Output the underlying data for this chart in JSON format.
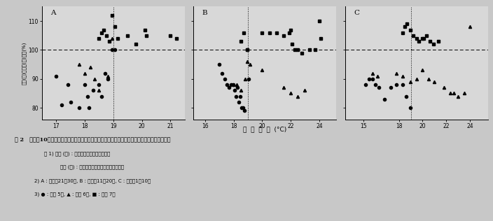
{
  "panels": [
    {
      "label": "A",
      "xlim": [
        16.5,
        21.5
      ],
      "xticks": [
        17,
        18,
        19,
        20,
        21
      ],
      "xtick_labels": [
        "17",
        "18",
        "19",
        "20",
        "21"
      ],
      "ylim": [
        76,
        115
      ],
      "yticks": [
        80,
        90,
        100,
        110
      ],
      "ytick_labels": [
        "80",
        "90",
        "100",
        "110"
      ],
      "vline_x": 19.0,
      "circles": [
        [
          17.0,
          91
        ],
        [
          17.2,
          81
        ],
        [
          17.4,
          88
        ],
        [
          17.5,
          82
        ],
        [
          17.8,
          80
        ],
        [
          18.0,
          88
        ],
        [
          18.1,
          84
        ],
        [
          18.15,
          80
        ],
        [
          18.3,
          86
        ],
        [
          18.5,
          88
        ],
        [
          18.6,
          84
        ],
        [
          18.7,
          92
        ],
        [
          18.8,
          90
        ],
        [
          18.95,
          100
        ],
        [
          19.05,
          100
        ]
      ],
      "triangles": [
        [
          17.8,
          95
        ],
        [
          18.0,
          92
        ],
        [
          18.2,
          94
        ],
        [
          18.35,
          90
        ],
        [
          18.5,
          86
        ],
        [
          18.8,
          91
        ],
        [
          18.95,
          104
        ]
      ],
      "squares": [
        [
          18.5,
          104
        ],
        [
          18.6,
          106
        ],
        [
          18.65,
          107
        ],
        [
          18.75,
          105
        ],
        [
          18.85,
          103
        ],
        [
          18.95,
          112
        ],
        [
          19.05,
          108
        ],
        [
          19.15,
          104
        ],
        [
          19.5,
          105
        ],
        [
          19.8,
          102
        ],
        [
          20.1,
          107
        ],
        [
          20.15,
          105
        ],
        [
          21.0,
          105
        ],
        [
          21.2,
          104
        ]
      ]
    },
    {
      "label": "B",
      "xlim": [
        15.2,
        25.2
      ],
      "xticks": [
        16,
        18,
        20,
        22,
        24
      ],
      "xtick_labels": [
        "16",
        "18",
        "20",
        "22",
        "24"
      ],
      "ylim": [
        76,
        115
      ],
      "yticks": [
        80,
        90,
        100,
        110
      ],
      "ytick_labels": [
        "80",
        "90",
        "100",
        "110"
      ],
      "vline_x": 19.0,
      "circles": [
        [
          17.0,
          95
        ],
        [
          17.2,
          92
        ],
        [
          17.4,
          90
        ],
        [
          17.55,
          88
        ],
        [
          17.7,
          87
        ],
        [
          17.85,
          88
        ],
        [
          17.95,
          88
        ],
        [
          18.05,
          86
        ],
        [
          18.15,
          84
        ],
        [
          18.25,
          87
        ],
        [
          18.35,
          82
        ],
        [
          18.45,
          84
        ],
        [
          18.55,
          80
        ],
        [
          18.65,
          80
        ],
        [
          18.75,
          79
        ],
        [
          18.95,
          100
        ],
        [
          19.05,
          90
        ]
      ],
      "triangles": [
        [
          18.0,
          88
        ],
        [
          18.2,
          88
        ],
        [
          18.5,
          86
        ],
        [
          18.8,
          90
        ],
        [
          18.95,
          96
        ],
        [
          19.15,
          95
        ],
        [
          20.0,
          93
        ],
        [
          21.5,
          87
        ],
        [
          22.0,
          85
        ],
        [
          22.5,
          84
        ],
        [
          23.0,
          86
        ]
      ],
      "squares": [
        [
          18.5,
          103
        ],
        [
          18.7,
          106
        ],
        [
          18.95,
          100
        ],
        [
          20.0,
          106
        ],
        [
          20.5,
          106
        ],
        [
          21.0,
          106
        ],
        [
          21.5,
          105
        ],
        [
          21.9,
          106
        ],
        [
          22.0,
          107
        ],
        [
          22.1,
          102
        ],
        [
          22.3,
          100
        ],
        [
          22.5,
          100
        ],
        [
          22.8,
          99
        ],
        [
          23.3,
          100
        ],
        [
          23.7,
          100
        ],
        [
          24.0,
          110
        ],
        [
          24.1,
          104
        ]
      ]
    },
    {
      "label": "C",
      "xlim": [
        13.5,
        25.5
      ],
      "xticks": [
        15,
        18,
        20,
        22,
        24
      ],
      "xtick_labels": [
        "15",
        "18",
        "20",
        "22",
        "24"
      ],
      "ylim": [
        76,
        115
      ],
      "yticks": [
        80,
        90,
        100,
        110
      ],
      "ytick_labels": [
        "80",
        "90",
        "100",
        "110"
      ],
      "vline_x": 19.0,
      "circles": [
        [
          15.2,
          88
        ],
        [
          15.5,
          90
        ],
        [
          15.8,
          90
        ],
        [
          16.0,
          88
        ],
        [
          16.3,
          87
        ],
        [
          16.8,
          83
        ],
        [
          17.3,
          87
        ],
        [
          17.8,
          88
        ],
        [
          18.3,
          88
        ],
        [
          18.6,
          84
        ],
        [
          18.95,
          80
        ]
      ],
      "triangles": [
        [
          15.8,
          92
        ],
        [
          16.2,
          91
        ],
        [
          17.8,
          92
        ],
        [
          18.3,
          91
        ],
        [
          18.95,
          89
        ],
        [
          19.5,
          90
        ],
        [
          20.0,
          93
        ],
        [
          20.5,
          90
        ],
        [
          21.0,
          89
        ],
        [
          21.8,
          87
        ],
        [
          22.3,
          85
        ],
        [
          22.6,
          85
        ],
        [
          23.0,
          84
        ],
        [
          23.5,
          85
        ],
        [
          24.0,
          108
        ]
      ],
      "squares": [
        [
          18.3,
          106
        ],
        [
          18.5,
          108
        ],
        [
          18.7,
          109
        ],
        [
          18.95,
          107
        ],
        [
          19.2,
          105
        ],
        [
          19.5,
          104
        ],
        [
          19.7,
          103
        ],
        [
          19.95,
          104
        ],
        [
          20.1,
          104
        ],
        [
          20.3,
          105
        ],
        [
          20.6,
          103
        ],
        [
          20.9,
          102
        ],
        [
          21.3,
          103
        ]
      ]
    }
  ],
  "ylabel": "芊長(圃)／芊長(気)の比(%)",
  "xlabel": "平  均  気  温  (°C)",
  "hline_y": 100,
  "bg_color": "#c8c8c8",
  "plot_bg": "#d8d8d8",
  "caption_title": "図 2   出穂前10日間ごとの平均気温と圈場および人工気象室で育成した品種の芊長の比率との関係",
  "note1a": "注 1) 芊長 (圃) : 圈場で育成した品種の芊長",
  "note1b": "    芊長 (気) : 人工気象室で育成した品種の芊長",
  "note2": "2) A : 出穂前21～30日, B : 出穂前11～20日, C : 出穂前1～10日",
  "note3": "3) ● : 平成 5年, ▲ : 平成 6年, ■ : 平成 7年"
}
